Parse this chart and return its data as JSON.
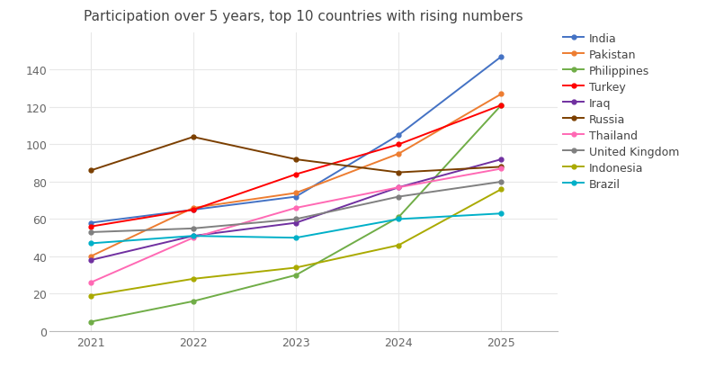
{
  "title": "Participation over 5 years, top 10 countries with rising numbers",
  "years": [
    2021,
    2022,
    2023,
    2024,
    2025
  ],
  "series": [
    {
      "name": "India",
      "color": "#4472C4",
      "values": [
        58,
        65,
        72,
        105,
        147
      ]
    },
    {
      "name": "Pakistan",
      "color": "#ED7D31",
      "values": [
        40,
        66,
        74,
        95,
        127
      ]
    },
    {
      "name": "Philippines",
      "color": "#70AD47",
      "values": [
        5,
        16,
        30,
        61,
        121
      ]
    },
    {
      "name": "Turkey",
      "color": "#FF0000",
      "values": [
        56,
        65,
        84,
        100,
        121
      ]
    },
    {
      "name": "Iraq",
      "color": "#7030A0",
      "values": [
        38,
        51,
        58,
        77,
        92
      ]
    },
    {
      "name": "Russia",
      "color": "#7B3F00",
      "values": [
        86,
        104,
        92,
        85,
        88
      ]
    },
    {
      "name": "Thailand",
      "color": "#FF69B4",
      "values": [
        26,
        50,
        66,
        77,
        87
      ]
    },
    {
      "name": "United Kingdom",
      "color": "#808080",
      "values": [
        53,
        55,
        60,
        72,
        80
      ]
    },
    {
      "name": "Indonesia",
      "color": "#AAAA00",
      "values": [
        19,
        28,
        34,
        46,
        76
      ]
    },
    {
      "name": "Brazil",
      "color": "#00B0C8",
      "values": [
        47,
        51,
        50,
        60,
        63
      ]
    }
  ],
  "ylim": [
    0,
    160
  ],
  "yticks": [
    0,
    20,
    40,
    60,
    80,
    100,
    120,
    140
  ],
  "background_color": "#ffffff",
  "grid_color": "#e8e8e8",
  "title_fontsize": 11,
  "tick_fontsize": 9,
  "legend_fontsize": 9
}
